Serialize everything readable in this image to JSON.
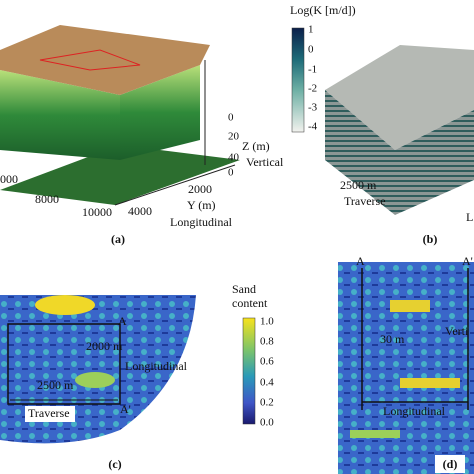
{
  "panel_a": {
    "z_axis": {
      "label": "Z (m)",
      "direction": "Vertical",
      "ticks": [
        "0",
        "20",
        "40"
      ]
    },
    "y_axis": {
      "label": "Y (m)",
      "direction": "Longitudinal",
      "ticks": [
        "0",
        "2000",
        "4000"
      ]
    },
    "x_axis": {
      "ticks": [
        "000",
        "8000",
        "10000"
      ]
    },
    "caption": "(a)"
  },
  "panel_b": {
    "colorbar": {
      "title": "Log(K [m/d])",
      "ticks": [
        "1",
        "0",
        "-1",
        "-2",
        "-3",
        "-4"
      ]
    },
    "traverse_length": "2500 m",
    "traverse": "Traverse",
    "cut_label": "L",
    "caption": "(b)"
  },
  "panel_c": {
    "colorbar": {
      "title": [
        "Sand",
        "content"
      ],
      "ticks": [
        "1.0",
        "0.8",
        "0.6",
        "0.4",
        "0.2",
        "0.0"
      ]
    },
    "point_a": "A",
    "point_a_prime": "A'",
    "longitudinal_length": "2000 m",
    "longitudinal": "Longitudinal",
    "traverse_length": "2500 m",
    "traverse": "Traverse",
    "caption": "(c)"
  },
  "panel_d": {
    "point_a": "A",
    "point_a_prime": "A'",
    "vertical_length": "30 m",
    "vertical": "Verti",
    "longitudinal": "Longitudinal",
    "caption": "(d)"
  }
}
